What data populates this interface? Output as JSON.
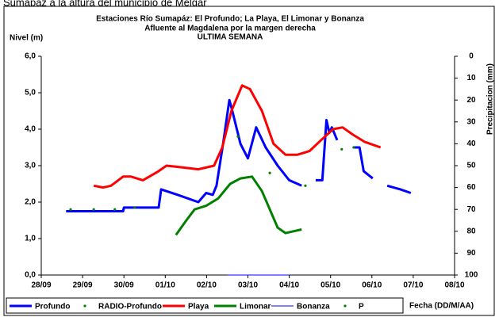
{
  "caption": "Sumapáz a la altura del municipio de Melgar",
  "chart_data": {
    "type": "line",
    "title": [
      "Estaciones Río Sumapáz: El Profundo; La Playa, El Limonar y Bonanza",
      "Afluente al Magdalena por la margen derecha",
      "ULTIMA SEMANA"
    ],
    "y_label": "Nivel (m)",
    "y2_label": "Precipitacion (mm)",
    "x_label": "Fecha (DD/M/AA)",
    "xlim": [
      0,
      10
    ],
    "xticks": [
      {
        "value": 0,
        "label": "28/09"
      },
      {
        "value": 1,
        "label": "29/09"
      },
      {
        "value": 2,
        "label": "30/09"
      },
      {
        "value": 3,
        "label": "01/10"
      },
      {
        "value": 4,
        "label": "02/10"
      },
      {
        "value": 5,
        "label": "03/10"
      },
      {
        "value": 6,
        "label": "04/10"
      },
      {
        "value": 7,
        "label": "05/10"
      },
      {
        "value": 8,
        "label": "06/10"
      },
      {
        "value": 9,
        "label": "07/10"
      },
      {
        "value": 10,
        "label": "08/10"
      }
    ],
    "ylim": [
      0,
      6
    ],
    "yticks": [
      {
        "value": 0,
        "label": "0,0"
      },
      {
        "value": 1,
        "label": "1,0"
      },
      {
        "value": 2,
        "label": "2,0"
      },
      {
        "value": 3,
        "label": "3,0"
      },
      {
        "value": 4,
        "label": "4,0"
      },
      {
        "value": 5,
        "label": "5,0"
      },
      {
        "value": 6,
        "label": "6,0"
      }
    ],
    "y2lim": [
      100,
      0
    ],
    "y2ticks": [
      0,
      10,
      20,
      30,
      40,
      50,
      60,
      70,
      80,
      90,
      100
    ],
    "grid": false,
    "legend": "bottom",
    "series": [
      {
        "name": "Profundo",
        "color": "#0000ff",
        "style": "line",
        "x": [
          0.6,
          1.98,
          2.0,
          2.84,
          2.9,
          3.3,
          3.8,
          3.99,
          4.15,
          4.24,
          4.4,
          4.55,
          4.6,
          4.82,
          5.0,
          5.2,
          5.43,
          5.72,
          6.0,
          6.3,
          6.45,
          6.64,
          6.8,
          6.9,
          6.97,
          7.03,
          7.16,
          7.3,
          7.55,
          7.7,
          7.8,
          8.02,
          8.1,
          8.37,
          8.69,
          8.94
        ],
        "values": [
          1.75,
          1.75,
          1.85,
          1.85,
          2.35,
          2.2,
          2.0,
          2.25,
          2.2,
          2.45,
          3.6,
          4.8,
          4.6,
          3.6,
          3.2,
          4.05,
          3.5,
          3.0,
          2.6,
          2.45,
          null,
          2.6,
          2.6,
          4.25,
          3.9,
          4.05,
          3.7,
          null,
          3.5,
          3.5,
          2.85,
          2.65,
          null,
          2.45,
          2.35,
          2.25
        ]
      },
      {
        "name": "RADIO-Profundo",
        "color": "#008000",
        "style": "dots",
        "x": [
          0.71,
          1.27,
          1.78,
          2.26,
          4.76,
          5.53,
          6.39,
          7.27,
          7.56
        ],
        "values": [
          1.8,
          1.8,
          1.8,
          1.85,
          3.8,
          2.8,
          2.45,
          3.45,
          3.5
        ]
      },
      {
        "name": "Playa",
        "color": "#ff0000",
        "style": "line",
        "x": [
          1.27,
          1.5,
          1.69,
          1.98,
          2.17,
          2.46,
          2.84,
          3.03,
          3.42,
          3.8,
          4.18,
          4.38,
          4.6,
          4.86,
          5.05,
          5.34,
          5.62,
          5.91,
          6.2,
          6.49,
          6.77,
          7.06,
          7.29,
          7.54,
          7.83,
          8.21
        ],
        "values": [
          2.45,
          2.4,
          2.45,
          2.7,
          2.7,
          2.6,
          2.85,
          3.0,
          2.95,
          2.9,
          3.0,
          3.5,
          4.5,
          5.2,
          5.1,
          4.5,
          3.6,
          3.3,
          3.3,
          3.4,
          3.7,
          4.0,
          4.05,
          3.85,
          3.65,
          3.5
        ]
      },
      {
        "name": "Limonar",
        "color": "#008000",
        "style": "line",
        "x": [
          3.26,
          3.51,
          3.71,
          3.99,
          4.28,
          4.57,
          4.82,
          5.1,
          5.34,
          5.53,
          5.72,
          5.91,
          6.1,
          6.3
        ],
        "values": [
          1.1,
          1.5,
          1.8,
          1.9,
          2.1,
          2.5,
          2.65,
          2.7,
          2.3,
          1.8,
          1.3,
          1.15,
          1.2,
          1.25
        ]
      },
      {
        "name": "Bonanza",
        "color": "#0000ff",
        "style": "thin",
        "x": [
          4.5,
          6.0
        ],
        "values": [
          0,
          0
        ]
      },
      {
        "name": "P",
        "color": "#008000",
        "style": "dots",
        "axis": "y2",
        "x": [],
        "values": []
      }
    ]
  }
}
